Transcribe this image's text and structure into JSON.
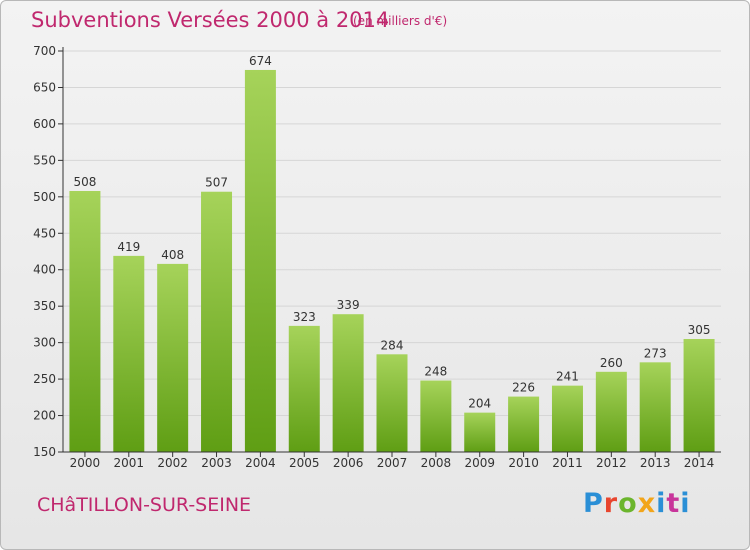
{
  "header": {
    "title": "Subventions Versées 2000 à 2014",
    "subtitle": "(en milliers d'€)"
  },
  "footer": {
    "town": "CHâTILLON-SUR-SEINE",
    "logo_text": "Proxiti"
  },
  "colors": {
    "title": "#c0286e",
    "bar_top": "#a6d35a",
    "bar_bottom": "#5f9e14",
    "grid": "#d6d6d6",
    "axis": "#333333"
  },
  "chart_data": {
    "type": "bar",
    "title": "Subventions Versées 2000 à 2014",
    "subtitle": "(en milliers d'€)",
    "xlabel": "",
    "ylabel": "",
    "categories": [
      "2000",
      "2001",
      "2002",
      "2003",
      "2004",
      "2005",
      "2006",
      "2007",
      "2008",
      "2009",
      "2010",
      "2011",
      "2012",
      "2013",
      "2014"
    ],
    "values": [
      508,
      419,
      408,
      507,
      674,
      323,
      339,
      284,
      248,
      204,
      226,
      241,
      260,
      273,
      305
    ],
    "ylim": [
      150,
      700
    ],
    "yticks": [
      150,
      200,
      250,
      300,
      350,
      400,
      450,
      500,
      550,
      600,
      650,
      700
    ],
    "grid": true,
    "data_labels": true,
    "legend": "none"
  }
}
